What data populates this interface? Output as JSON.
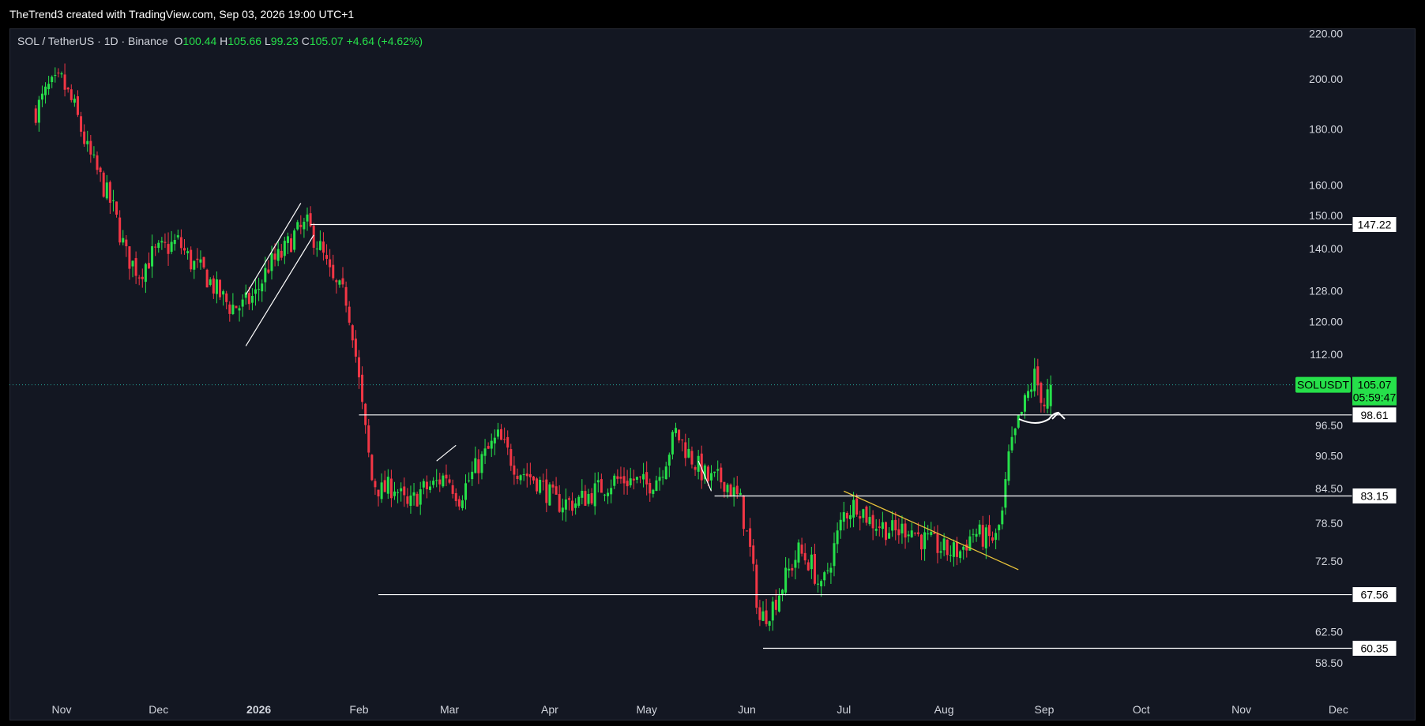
{
  "credit": "TheTrend3 created with TradingView.com, Sep 03, 2026 19:00 UTC+1",
  "legend": {
    "symbol": "SOL / TetherUS · 1D · Binance",
    "open_label": "O",
    "open": "100.44",
    "high_label": "H",
    "high": "105.66",
    "low_label": "L",
    "low": "99.23",
    "close_label": "C",
    "close": "105.07",
    "change": "+4.64 (+4.62%)"
  },
  "colors": {
    "background": "#131722",
    "up": "#26e04a",
    "down": "#f23645",
    "line": "#ffffff",
    "trend": "#e8c23a",
    "price_tag": "#26e04a"
  },
  "chart_data": {
    "type": "candlestick",
    "y_axis": {
      "scale": "log",
      "ticks": [
        58.5,
        62.5,
        72.5,
        78.5,
        84.5,
        90.5,
        96.5,
        112.0,
        120.0,
        128.0,
        140.0,
        150.0,
        160.0,
        180.0,
        200.0,
        220.0
      ],
      "tick_labels": [
        "58.50",
        "62.50",
        "72.50",
        "78.50",
        "84.50",
        "90.50",
        "96.50",
        "112.00",
        "120.00",
        "128.00",
        "140.00",
        "150.00",
        "160.00",
        "180.00",
        "200.00",
        "220.00"
      ]
    },
    "x_axis": {
      "ticks": [
        "Nov",
        "Dec",
        "2026",
        "Feb",
        "Mar",
        "Apr",
        "May",
        "Jun",
        "Jul",
        "Aug",
        "Sep",
        "Oct",
        "Nov",
        "Dec"
      ],
      "tick_dates": [
        "2025-11-01",
        "2025-12-01",
        "2026-01-01",
        "2026-02-01",
        "2026-03-01",
        "2026-04-01",
        "2026-05-01",
        "2026-06-01",
        "2026-07-01",
        "2026-08-01",
        "2026-09-01",
        "2026-10-01",
        "2026-11-01",
        "2026-12-01"
      ],
      "bold_tick": "2026"
    },
    "price_path": [
      [
        "2025-10-24",
        187
      ],
      [
        "2025-10-28",
        196
      ],
      [
        "2025-11-01",
        199
      ],
      [
        "2025-11-05",
        188
      ],
      [
        "2025-11-09",
        172
      ],
      [
        "2025-11-13",
        162
      ],
      [
        "2025-11-17",
        152
      ],
      [
        "2025-11-21",
        138
      ],
      [
        "2025-11-25",
        133
      ],
      [
        "2025-11-29",
        138
      ],
      [
        "2025-12-03",
        140
      ],
      [
        "2025-12-07",
        142
      ],
      [
        "2025-12-11",
        136
      ],
      [
        "2025-12-15",
        133
      ],
      [
        "2025-12-19",
        128
      ],
      [
        "2025-12-23",
        124
      ],
      [
        "2025-12-27",
        124
      ],
      [
        "2025-12-31",
        127
      ],
      [
        "2026-01-04",
        135
      ],
      [
        "2026-01-08",
        138
      ],
      [
        "2026-01-12",
        144
      ],
      [
        "2026-01-16",
        147
      ],
      [
        "2026-01-20",
        140
      ],
      [
        "2026-01-24",
        130
      ],
      [
        "2026-01-28",
        126
      ],
      [
        "2026-01-30",
        118
      ],
      [
        "2026-02-02",
        100
      ],
      [
        "2026-02-05",
        86
      ],
      [
        "2026-02-08",
        84
      ],
      [
        "2026-02-12",
        85
      ],
      [
        "2026-02-16",
        81
      ],
      [
        "2026-02-20",
        84
      ],
      [
        "2026-02-24",
        85
      ],
      [
        "2026-02-28",
        87
      ],
      [
        "2026-03-04",
        83
      ],
      [
        "2026-03-10",
        89
      ],
      [
        "2026-03-16",
        94
      ],
      [
        "2026-03-22",
        88
      ],
      [
        "2026-03-28",
        86
      ],
      [
        "2026-04-03",
        82
      ],
      [
        "2026-04-09",
        82
      ],
      [
        "2026-04-15",
        84
      ],
      [
        "2026-04-21",
        86
      ],
      [
        "2026-04-27",
        86
      ],
      [
        "2026-05-01",
        85
      ],
      [
        "2026-05-05",
        87
      ],
      [
        "2026-05-10",
        95
      ],
      [
        "2026-05-15",
        90
      ],
      [
        "2026-05-20",
        86
      ],
      [
        "2026-05-25",
        86
      ],
      [
        "2026-05-30",
        82
      ],
      [
        "2026-06-02",
        74
      ],
      [
        "2026-06-05",
        64
      ],
      [
        "2026-06-09",
        66
      ],
      [
        "2026-06-13",
        70
      ],
      [
        "2026-06-17",
        74
      ],
      [
        "2026-06-21",
        72
      ],
      [
        "2026-06-24",
        68
      ],
      [
        "2026-06-27",
        73
      ],
      [
        "2026-07-01",
        80
      ],
      [
        "2026-07-05",
        82
      ],
      [
        "2026-07-09",
        79
      ],
      [
        "2026-07-13",
        78
      ],
      [
        "2026-07-17",
        77
      ],
      [
        "2026-07-21",
        78
      ],
      [
        "2026-07-25",
        76
      ],
      [
        "2026-07-29",
        75
      ],
      [
        "2026-08-02",
        74
      ],
      [
        "2026-08-06",
        74
      ],
      [
        "2026-08-10",
        77
      ],
      [
        "2026-08-14",
        76
      ],
      [
        "2026-08-17",
        76
      ],
      [
        "2026-08-19",
        80
      ],
      [
        "2026-08-21",
        90
      ],
      [
        "2026-08-24",
        97
      ],
      [
        "2026-08-27",
        103
      ],
      [
        "2026-08-29",
        107
      ],
      [
        "2026-09-01",
        101
      ],
      [
        "2026-09-03",
        105.07
      ]
    ],
    "horizontal_levels": [
      {
        "value": 147.22,
        "label": "147.22",
        "from": "2026-01-17"
      },
      {
        "value": 98.61,
        "label": "98.61",
        "from": "2026-02-01"
      },
      {
        "value": 83.15,
        "label": "83.15",
        "from": "2026-05-22"
      },
      {
        "value": 67.56,
        "label": "67.56",
        "from": "2026-02-07"
      },
      {
        "value": 60.35,
        "label": "60.35",
        "from": "2026-06-06"
      }
    ],
    "channel_lines": [
      {
        "from": [
          "2025-12-28",
          114
        ],
        "to": [
          "2026-01-18",
          144
        ]
      },
      {
        "from": [
          "2025-12-28",
          127
        ],
        "to": [
          "2026-01-14",
          154
        ]
      }
    ],
    "small_lines": [
      {
        "from": [
          "2026-02-25",
          89.5
        ],
        "to": [
          "2026-03-03",
          92.5
        ]
      },
      {
        "from": [
          "2026-05-17",
          89.5
        ],
        "to": [
          "2026-05-21",
          84
        ]
      }
    ],
    "trend_line": {
      "from": [
        "2026-07-01",
        84
      ],
      "to": [
        "2026-08-24",
        71.2
      ]
    },
    "current_price": {
      "value": 105.07,
      "symbol_tag": "SOLUSDT",
      "price_label": "105.07",
      "countdown": "05:59:47"
    }
  }
}
